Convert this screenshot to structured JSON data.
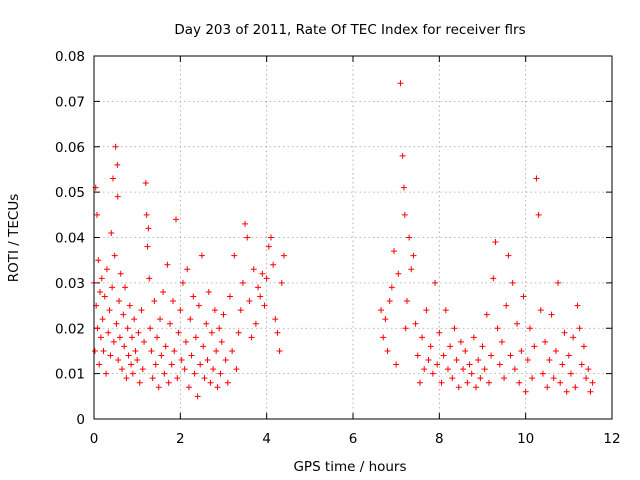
{
  "chart_data": {
    "type": "scatter",
    "title": "Day 203 of 2011, Rate Of TEC Index for receiver flrs",
    "xlabel": "GPS time / hours",
    "ylabel": "ROTI / TECUs",
    "xlim": [
      0,
      12
    ],
    "ylim": [
      0,
      0.08
    ],
    "x_ticks": [
      "0",
      "2",
      "4",
      "6",
      "8",
      "10",
      "12"
    ],
    "y_ticks": [
      "0",
      "0.01",
      "0.02",
      "0.03",
      "0.04",
      "0.05",
      "0.06",
      "0.07",
      "0.08"
    ],
    "grid": true,
    "marker": "+",
    "color": "#ff0000",
    "series": [
      {
        "name": "ROTI",
        "x": [
          0.0,
          0.02,
          0.04,
          0.05,
          0.07,
          0.08,
          0.1,
          0.12,
          0.14,
          0.16,
          0.18,
          0.2,
          0.22,
          0.25,
          0.28,
          0.3,
          0.33,
          0.36,
          0.38,
          0.4,
          0.42,
          0.44,
          0.46,
          0.48,
          0.5,
          0.52,
          0.54,
          0.55,
          0.56,
          0.58,
          0.6,
          0.62,
          0.65,
          0.68,
          0.7,
          0.72,
          0.75,
          0.78,
          0.8,
          0.83,
          0.86,
          0.88,
          0.9,
          0.93,
          0.96,
          1.0,
          1.03,
          1.06,
          1.1,
          1.13,
          1.16,
          1.2,
          1.22,
          1.24,
          1.26,
          1.28,
          1.3,
          1.33,
          1.36,
          1.4,
          1.43,
          1.46,
          1.5,
          1.53,
          1.56,
          1.6,
          1.63,
          1.66,
          1.7,
          1.73,
          1.76,
          1.8,
          1.83,
          1.86,
          1.9,
          1.93,
          1.96,
          2.0,
          2.03,
          2.06,
          2.1,
          2.13,
          2.16,
          2.2,
          2.23,
          2.26,
          2.3,
          2.33,
          2.36,
          2.4,
          2.43,
          2.46,
          2.5,
          2.53,
          2.56,
          2.6,
          2.63,
          2.66,
          2.7,
          2.73,
          2.76,
          2.8,
          2.83,
          2.86,
          2.9,
          2.93,
          2.96,
          3.0,
          3.05,
          3.1,
          3.15,
          3.2,
          3.25,
          3.3,
          3.35,
          3.4,
          3.45,
          3.5,
          3.55,
          3.6,
          3.65,
          3.7,
          3.75,
          3.8,
          3.85,
          3.9,
          3.95,
          4.0,
          4.05,
          4.1,
          4.15,
          4.2,
          4.25,
          4.3,
          4.35,
          4.4,
          6.65,
          6.7,
          6.75,
          6.8,
          6.85,
          6.9,
          6.95,
          7.0,
          7.05,
          7.1,
          7.15,
          7.18,
          7.2,
          7.22,
          7.25,
          7.3,
          7.35,
          7.4,
          7.45,
          7.5,
          7.55,
          7.6,
          7.65,
          7.7,
          7.75,
          7.8,
          7.85,
          7.9,
          7.95,
          8.0,
          8.05,
          8.1,
          8.15,
          8.2,
          8.25,
          8.3,
          8.35,
          8.4,
          8.45,
          8.5,
          8.55,
          8.6,
          8.65,
          8.7,
          8.75,
          8.8,
          8.85,
          8.9,
          8.95,
          9.0,
          9.05,
          9.1,
          9.15,
          9.2,
          9.25,
          9.3,
          9.35,
          9.4,
          9.45,
          9.5,
          9.55,
          9.6,
          9.65,
          9.7,
          9.75,
          9.8,
          9.85,
          9.9,
          9.95,
          10.0,
          10.05,
          10.1,
          10.15,
          10.2,
          10.25,
          10.3,
          10.35,
          10.4,
          10.45,
          10.5,
          10.55,
          10.6,
          10.65,
          10.7,
          10.75,
          10.8,
          10.85,
          10.9,
          10.95,
          11.0,
          11.05,
          11.1,
          11.15,
          11.2,
          11.25,
          11.3,
          11.35,
          11.4,
          11.45,
          11.5,
          11.55
        ],
        "y": [
          0.03,
          0.015,
          0.051,
          0.025,
          0.045,
          0.02,
          0.035,
          0.012,
          0.028,
          0.018,
          0.031,
          0.022,
          0.015,
          0.027,
          0.01,
          0.033,
          0.019,
          0.024,
          0.014,
          0.041,
          0.029,
          0.053,
          0.017,
          0.036,
          0.06,
          0.021,
          0.056,
          0.049,
          0.013,
          0.026,
          0.018,
          0.032,
          0.011,
          0.023,
          0.016,
          0.029,
          0.009,
          0.02,
          0.014,
          0.025,
          0.012,
          0.018,
          0.01,
          0.022,
          0.015,
          0.013,
          0.019,
          0.008,
          0.024,
          0.011,
          0.017,
          0.052,
          0.045,
          0.038,
          0.042,
          0.031,
          0.02,
          0.015,
          0.009,
          0.026,
          0.012,
          0.018,
          0.007,
          0.022,
          0.014,
          0.028,
          0.01,
          0.016,
          0.034,
          0.008,
          0.021,
          0.012,
          0.026,
          0.015,
          0.044,
          0.009,
          0.019,
          0.024,
          0.013,
          0.03,
          0.011,
          0.017,
          0.033,
          0.007,
          0.022,
          0.014,
          0.027,
          0.01,
          0.018,
          0.005,
          0.025,
          0.012,
          0.036,
          0.016,
          0.009,
          0.021,
          0.013,
          0.028,
          0.008,
          0.019,
          0.011,
          0.024,
          0.015,
          0.007,
          0.02,
          0.01,
          0.017,
          0.023,
          0.013,
          0.008,
          0.027,
          0.015,
          0.036,
          0.011,
          0.019,
          0.024,
          0.03,
          0.043,
          0.04,
          0.026,
          0.018,
          0.033,
          0.021,
          0.029,
          0.027,
          0.032,
          0.025,
          0.031,
          0.038,
          0.04,
          0.034,
          0.022,
          0.019,
          0.015,
          0.03,
          0.036,
          0.024,
          0.018,
          0.022,
          0.015,
          0.026,
          0.029,
          0.037,
          0.012,
          0.032,
          0.074,
          0.058,
          0.051,
          0.045,
          0.02,
          0.026,
          0.04,
          0.033,
          0.036,
          0.021,
          0.014,
          0.008,
          0.018,
          0.011,
          0.024,
          0.013,
          0.016,
          0.01,
          0.03,
          0.012,
          0.019,
          0.008,
          0.014,
          0.024,
          0.011,
          0.016,
          0.009,
          0.02,
          0.013,
          0.007,
          0.017,
          0.011,
          0.015,
          0.008,
          0.012,
          0.01,
          0.018,
          0.007,
          0.013,
          0.009,
          0.016,
          0.011,
          0.023,
          0.008,
          0.014,
          0.031,
          0.039,
          0.02,
          0.012,
          0.017,
          0.009,
          0.025,
          0.036,
          0.014,
          0.03,
          0.011,
          0.021,
          0.008,
          0.015,
          0.027,
          0.006,
          0.013,
          0.02,
          0.009,
          0.016,
          0.053,
          0.045,
          0.024,
          0.01,
          0.017,
          0.007,
          0.013,
          0.023,
          0.009,
          0.015,
          0.03,
          0.008,
          0.012,
          0.019,
          0.006,
          0.014,
          0.01,
          0.018,
          0.007,
          0.025,
          0.02,
          0.012,
          0.016,
          0.009,
          0.011,
          0.006,
          0.008
        ]
      }
    ]
  }
}
